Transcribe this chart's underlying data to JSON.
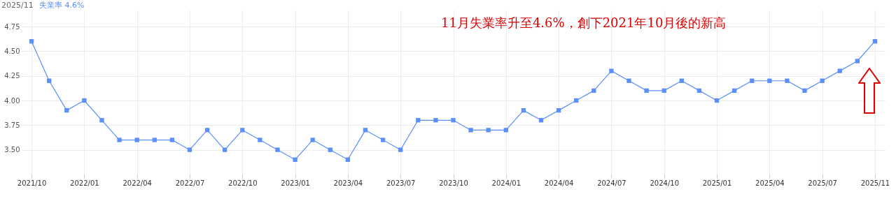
{
  "chart_data": {
    "type": "line",
    "categories": [
      "2021/10",
      null,
      null,
      "2022/01",
      null,
      null,
      "2022/04",
      null,
      null,
      "2022/07",
      null,
      null,
      "2022/10",
      null,
      null,
      "2023/01",
      null,
      null,
      "2023/04",
      null,
      null,
      "2023/07",
      null,
      null,
      "2023/10",
      null,
      null,
      "2024/01",
      null,
      null,
      "2024/04",
      null,
      null,
      "2024/07",
      null,
      null,
      "2024/10",
      null,
      null,
      "2025/01",
      null,
      null,
      "2025/04",
      null,
      null,
      "2025/07",
      null,
      null,
      "2025/11"
    ],
    "series": [
      {
        "name": "失業率",
        "color": "#5b8ff9",
        "values": [
          4.6,
          4.2,
          3.9,
          4.0,
          3.8,
          3.6,
          3.6,
          3.6,
          3.6,
          3.5,
          3.7,
          3.5,
          3.7,
          3.6,
          3.5,
          3.4,
          3.6,
          3.5,
          3.4,
          3.7,
          3.6,
          3.5,
          3.8,
          3.8,
          3.8,
          3.7,
          3.7,
          3.7,
          3.9,
          3.8,
          3.9,
          4.0,
          4.1,
          4.3,
          4.2,
          4.1,
          4.1,
          4.2,
          4.1,
          4.0,
          4.1,
          4.2,
          4.2,
          4.2,
          4.1,
          4.2,
          4.3,
          4.4,
          4.6
        ]
      }
    ],
    "ylim": [
      3.25,
      4.92
    ],
    "yticks": [
      {
        "value": 3.5,
        "label": "3.50"
      },
      {
        "value": 3.75,
        "label": "3.75"
      },
      {
        "value": 4.0,
        "label": "4.00"
      },
      {
        "value": 4.25,
        "label": "4.25"
      },
      {
        "value": 4.5,
        "label": "4.50"
      },
      {
        "value": 4.75,
        "label": "4.75"
      }
    ],
    "grid": true,
    "marker": "square",
    "annotations": [
      "2025/11",
      "4.6%",
      "11月失業率升至4.6%，創下2021年10月後的新高"
    ]
  }
}
